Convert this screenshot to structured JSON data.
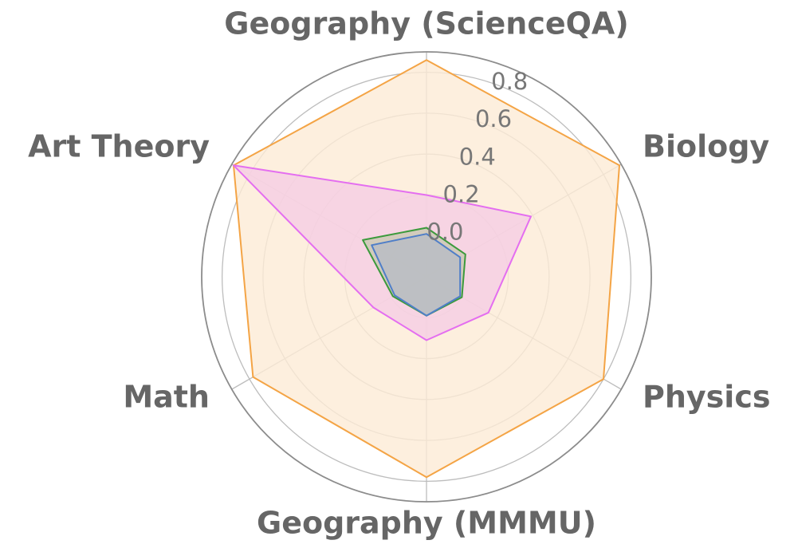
{
  "chart_data": {
    "type": "radar",
    "categories": [
      "Geography (ScienceQA)",
      "Biology",
      "Physics",
      "Geography (MMMU)",
      "Math",
      "Art Theory"
    ],
    "radial_ticks": [
      "0.0",
      "0.2",
      "0.4",
      "0.6",
      "0.8"
    ],
    "rlim": [
      -0.2,
      0.9
    ],
    "grid": true,
    "series": [
      {
        "values": [
          0.86,
          0.89,
          0.8,
          0.78,
          0.78,
          0.89
        ],
        "color": "#f4a445",
        "fill": "#fdebd6"
      },
      {
        "values": [
          0.2,
          0.39,
          0.15,
          0.11,
          0.1,
          0.89
        ],
        "color": "#e46ef0",
        "fill": "#f5cde3"
      },
      {
        "values": [
          0.04,
          0.02,
          0.0,
          -0.01,
          -0.01,
          0.16
        ],
        "color": "#3c9a3c",
        "fill": "#c8c8b2"
      },
      {
        "values": [
          0.01,
          -0.01,
          -0.01,
          -0.01,
          -0.02,
          0.11
        ],
        "color": "#4f7ec8",
        "fill": "#b8bcc4"
      }
    ]
  }
}
